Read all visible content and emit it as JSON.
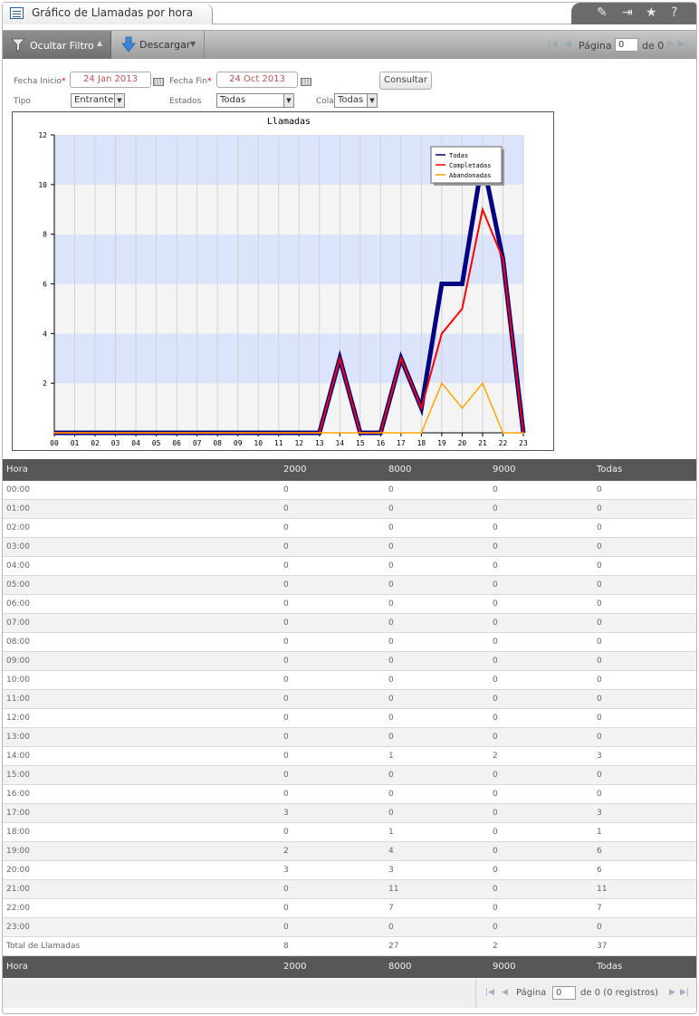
{
  "window": {
    "title": "Gráfico de Llamadas por hora"
  },
  "toolbar": {
    "filter_label": "Ocultar Filtro",
    "download_label": "Descargar",
    "page_label": "Página",
    "page_value": "0",
    "page_of": "de 0"
  },
  "form": {
    "fecha_inicio_label": "Fecha Inicio",
    "fecha_inicio_value": "24 Jan 2013",
    "fecha_fin_label": "Fecha Fin",
    "fecha_fin_value": "24 Oct 2013",
    "required_mark": "*",
    "consultar_label": "Consultar",
    "tipo_label": "Tipo",
    "tipo_value": "Entrante",
    "estados_label": "Estados",
    "estados_value": "Todas",
    "cola_label": "Cola",
    "cola_value": "Todas"
  },
  "chart_data": {
    "type": "line",
    "title": "Llamadas",
    "categories": [
      "00",
      "01",
      "02",
      "03",
      "04",
      "05",
      "06",
      "07",
      "08",
      "09",
      "10",
      "11",
      "12",
      "13",
      "14",
      "15",
      "16",
      "17",
      "18",
      "19",
      "20",
      "21",
      "22",
      "23"
    ],
    "ylim": [
      0,
      12
    ],
    "yticks": [
      2,
      4,
      6,
      8,
      10,
      12
    ],
    "legend_position": "top-right",
    "series": [
      {
        "name": "Todas",
        "color": "#000080",
        "values": [
          0,
          0,
          0,
          0,
          0,
          0,
          0,
          0,
          0,
          0,
          0,
          0,
          0,
          0,
          3,
          0,
          0,
          3,
          1,
          6,
          6,
          11,
          7,
          0
        ]
      },
      {
        "name": "Completadas",
        "color": "#ff0000",
        "values": [
          0,
          0,
          0,
          0,
          0,
          0,
          0,
          0,
          0,
          0,
          0,
          0,
          0,
          0,
          3,
          0,
          0,
          3,
          1,
          4,
          5,
          9,
          7,
          0
        ]
      },
      {
        "name": "Abandonadas",
        "color": "#ffa500",
        "values": [
          0,
          0,
          0,
          0,
          0,
          0,
          0,
          0,
          0,
          0,
          0,
          0,
          0,
          0,
          0,
          0,
          0,
          0,
          0,
          2,
          1,
          2,
          0,
          0
        ]
      }
    ]
  },
  "table": {
    "headers": [
      "Hora",
      "2000",
      "8000",
      "9000",
      "Todas"
    ],
    "rows": [
      [
        "00:00",
        "0",
        "0",
        "0",
        "0"
      ],
      [
        "01:00",
        "0",
        "0",
        "0",
        "0"
      ],
      [
        "02:00",
        "0",
        "0",
        "0",
        "0"
      ],
      [
        "03:00",
        "0",
        "0",
        "0",
        "0"
      ],
      [
        "04:00",
        "0",
        "0",
        "0",
        "0"
      ],
      [
        "05:00",
        "0",
        "0",
        "0",
        "0"
      ],
      [
        "06:00",
        "0",
        "0",
        "0",
        "0"
      ],
      [
        "07:00",
        "0",
        "0",
        "0",
        "0"
      ],
      [
        "08:00",
        "0",
        "0",
        "0",
        "0"
      ],
      [
        "09:00",
        "0",
        "0",
        "0",
        "0"
      ],
      [
        "10:00",
        "0",
        "0",
        "0",
        "0"
      ],
      [
        "11:00",
        "0",
        "0",
        "0",
        "0"
      ],
      [
        "12:00",
        "0",
        "0",
        "0",
        "0"
      ],
      [
        "13:00",
        "0",
        "0",
        "0",
        "0"
      ],
      [
        "14:00",
        "0",
        "1",
        "2",
        "3"
      ],
      [
        "15:00",
        "0",
        "0",
        "0",
        "0"
      ],
      [
        "16:00",
        "0",
        "0",
        "0",
        "0"
      ],
      [
        "17:00",
        "3",
        "0",
        "0",
        "3"
      ],
      [
        "18:00",
        "0",
        "1",
        "0",
        "1"
      ],
      [
        "19:00",
        "2",
        "4",
        "0",
        "6"
      ],
      [
        "20:00",
        "3",
        "3",
        "0",
        "6"
      ],
      [
        "21:00",
        "0",
        "11",
        "0",
        "11"
      ],
      [
        "22:00",
        "0",
        "7",
        "0",
        "7"
      ],
      [
        "23:00",
        "0",
        "0",
        "0",
        "0"
      ],
      [
        "Total de Llamadas",
        "8",
        "27",
        "2",
        "37"
      ]
    ]
  },
  "bottom_pager": {
    "page_label": "Página",
    "page_value": "0",
    "page_of": "de 0 (0 registros)"
  }
}
